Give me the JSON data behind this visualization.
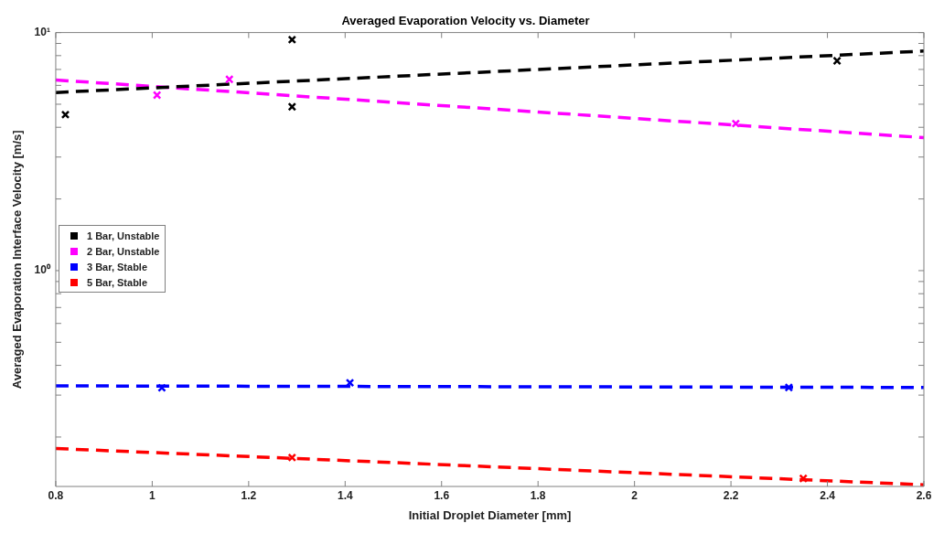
{
  "chart_data": {
    "type": "scatter",
    "title": "Averaged Evaporation Velocity vs. Diameter",
    "xlabel": "Initial Droplet Diameter [mm]",
    "ylabel": "Averaged Evaporation Interface Velocity [m/s]",
    "xlim": [
      0.8,
      2.6
    ],
    "xticks": [
      0.8,
      1,
      1.2,
      1.4,
      1.6,
      1.8,
      2,
      2.2,
      2.4,
      2.6
    ],
    "ylim": [
      0.124,
      10
    ],
    "yticks": [
      {
        "value": 0.2,
        "label": null
      },
      {
        "value": 0.3,
        "label": null
      },
      {
        "value": 0.4,
        "label": null
      },
      {
        "value": 0.5,
        "label": null
      },
      {
        "value": 0.6,
        "label": null
      },
      {
        "value": 0.7,
        "label": null
      },
      {
        "value": 0.8,
        "label": null
      },
      {
        "value": 0.9,
        "label": null
      },
      {
        "value": 1,
        "label": "10⁰"
      },
      {
        "value": 2,
        "label": null
      },
      {
        "value": 3,
        "label": null
      },
      {
        "value": 4,
        "label": null
      },
      {
        "value": 5,
        "label": null
      },
      {
        "value": 6,
        "label": null
      },
      {
        "value": 7,
        "label": null
      },
      {
        "value": 8,
        "label": null
      },
      {
        "value": 9,
        "label": null
      },
      {
        "value": 10,
        "label": "10¹"
      }
    ],
    "log": "y",
    "grid": false,
    "legend": "left",
    "marker": "cross",
    "series": [
      {
        "name": "1 Bar, Unstable",
        "color": "#000000",
        "x": [
          0.82,
          1.29,
          1.29,
          2.42
        ],
        "values": [
          4.52,
          9.34,
          4.88,
          7.61
        ]
      },
      {
        "name": "2 Bar, Unstable",
        "color": "#ff00ff",
        "x": [
          1.01,
          1.16,
          2.21
        ],
        "values": [
          5.46,
          6.36,
          4.15
        ]
      },
      {
        "name": "3 Bar, Stable",
        "color": "#0000ff",
        "x": [
          1.02,
          1.41,
          2.32
        ],
        "values": [
          0.322,
          0.338,
          0.323
        ]
      },
      {
        "name": "5 Bar, Stable",
        "color": "#ff0000",
        "x": [
          1.29,
          2.35
        ],
        "values": [
          0.164,
          0.134
        ]
      },
      {
        "type": "line",
        "color": "#000000",
        "line_style": "dashed",
        "marker": "none",
        "x": [
          0.8,
          2.6
        ],
        "values": [
          5.6,
          8.36
        ]
      },
      {
        "type": "line",
        "color": "#ff00ff",
        "line_style": "dashed",
        "marker": "none",
        "x": [
          0.8,
          2.6
        ],
        "values": [
          6.32,
          3.62
        ]
      },
      {
        "type": "line",
        "color": "#0000ff",
        "line_style": "dashed",
        "marker": "none",
        "x": [
          0.8,
          2.6
        ],
        "values": [
          0.328,
          0.323
        ]
      },
      {
        "type": "line",
        "color": "#ff0000",
        "line_style": "dashed",
        "marker": "none",
        "x": [
          0.8,
          2.6
        ],
        "values": [
          0.179,
          0.126
        ]
      }
    ]
  }
}
